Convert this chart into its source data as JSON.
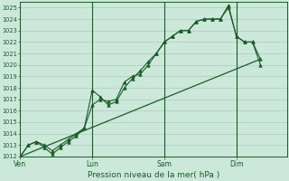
{
  "xlabel": "Pression niveau de la mer( hPa )",
  "bg_color": "#cce8da",
  "grid_color": "#aaccbb",
  "line_color": "#1a5c28",
  "ylim": [
    1012,
    1025.5
  ],
  "ytick_min": 1012,
  "ytick_max": 1025,
  "day_labels": [
    "Ven",
    "Lun",
    "Sam",
    "Dim"
  ],
  "day_positions": [
    0,
    27,
    54,
    81
  ],
  "xlim": [
    0,
    100
  ],
  "series1_x": [
    0,
    3,
    6,
    9,
    12,
    15,
    18,
    21,
    24,
    27,
    30,
    33,
    36,
    39,
    42,
    45,
    48,
    51,
    54,
    57,
    60,
    63,
    66,
    69,
    72,
    75,
    78,
    81,
    84,
    87,
    90
  ],
  "series1_y": [
    1012.0,
    1013.0,
    1013.3,
    1013.0,
    1012.5,
    1013.0,
    1013.5,
    1014.0,
    1014.5,
    1016.5,
    1017.0,
    1016.8,
    1017.0,
    1018.5,
    1019.0,
    1019.2,
    1020.0,
    1021.0,
    1022.0,
    1022.5,
    1023.0,
    1023.0,
    1023.8,
    1024.0,
    1024.0,
    1024.0,
    1025.2,
    1022.5,
    1022.0,
    1022.0,
    1020.0
  ],
  "series2_x": [
    0,
    3,
    6,
    9,
    12,
    15,
    18,
    21,
    24,
    27,
    30,
    33,
    36,
    39,
    42,
    45,
    48,
    51,
    54,
    57,
    60,
    63,
    66,
    69,
    72,
    75,
    78,
    81,
    84,
    87,
    90
  ],
  "series2_y": [
    1012.0,
    1013.0,
    1013.3,
    1012.8,
    1012.2,
    1012.8,
    1013.3,
    1013.8,
    1014.5,
    1017.8,
    1017.2,
    1016.5,
    1016.8,
    1018.0,
    1018.8,
    1019.5,
    1020.3,
    1021.0,
    1022.0,
    1022.5,
    1023.0,
    1023.0,
    1023.8,
    1024.0,
    1024.0,
    1024.0,
    1025.0,
    1022.5,
    1022.0,
    1022.0,
    1020.5
  ],
  "series3_x": [
    0,
    90
  ],
  "series3_y": [
    1012.0,
    1020.5
  ]
}
